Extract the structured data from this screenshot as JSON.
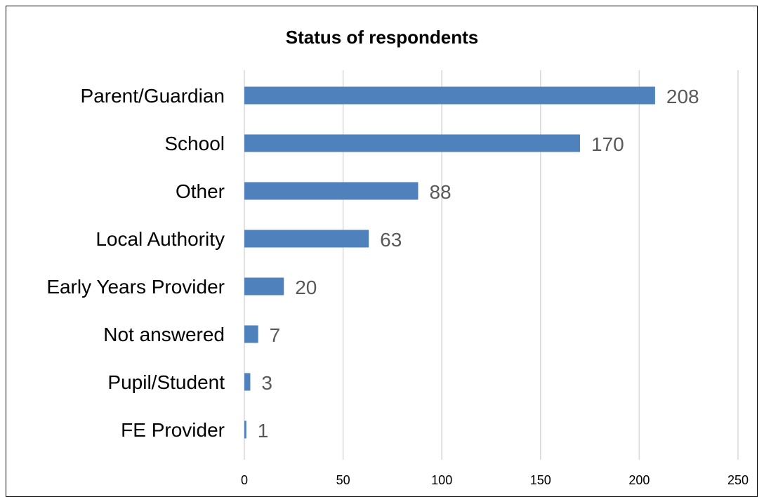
{
  "chart_data": {
    "type": "bar",
    "orientation": "horizontal",
    "title": "Status of respondents",
    "categories": [
      "Parent/Guardian",
      "School",
      "Other",
      "Local Authority",
      "Early Years Provider",
      "Not answered",
      "Pupil/Student",
      "FE Provider"
    ],
    "values": [
      208,
      170,
      88,
      63,
      20,
      7,
      3,
      1
    ],
    "xlim": [
      0,
      250
    ],
    "x_ticks": [
      "0",
      "50",
      "100",
      "150",
      "200",
      "250"
    ],
    "grid": "vertical",
    "data_labels": true,
    "bar_color": "#4f81bd",
    "grid_color": "#d9d9d9",
    "value_label_color": "#595959",
    "frame_color": "#000000"
  }
}
